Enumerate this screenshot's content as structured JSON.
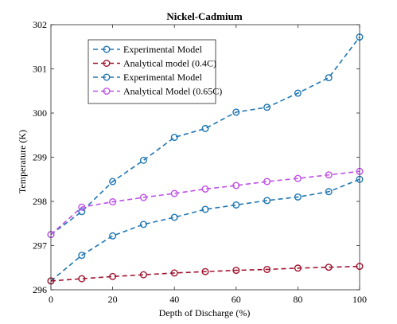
{
  "chart_data": {
    "type": "line",
    "title": "Nickel-Cadmium",
    "xlabel": "Depth of Discharge (%)",
    "ylabel": "Temperature (K)",
    "xlim": [
      0,
      100
    ],
    "ylim": [
      296,
      302
    ],
    "xticks": [
      0,
      20,
      40,
      60,
      80,
      100
    ],
    "yticks": [
      296,
      297,
      298,
      299,
      300,
      301,
      302
    ],
    "grid": false,
    "legend_position": "top-left",
    "series": [
      {
        "name": "Experimental Model",
        "color": "#1f77b4",
        "linestyle": "dashed",
        "marker": "circle",
        "x": [
          0,
          10,
          20,
          30,
          40,
          50,
          60,
          70,
          80,
          90,
          100
        ],
        "y": [
          296.2,
          296.78,
          297.22,
          297.48,
          297.64,
          297.82,
          297.92,
          298.02,
          298.1,
          298.22,
          298.5
        ]
      },
      {
        "name": "Analytical model (0.4C)",
        "color": "#a2142f",
        "linestyle": "dashed",
        "marker": "circle",
        "x": [
          0,
          10,
          20,
          30,
          40,
          50,
          60,
          70,
          80,
          90,
          100
        ],
        "y": [
          296.2,
          296.25,
          296.3,
          296.34,
          296.38,
          296.41,
          296.44,
          296.46,
          296.49,
          296.51,
          296.53
        ]
      },
      {
        "name": "Experimental Model",
        "color": "#1f77b4",
        "linestyle": "dashed",
        "marker": "circle",
        "x": [
          0,
          10,
          20,
          30,
          40,
          50,
          60,
          70,
          80,
          90,
          100
        ],
        "y": [
          297.25,
          297.77,
          298.45,
          298.93,
          299.45,
          299.65,
          300.02,
          300.13,
          300.45,
          300.8,
          301.72
        ]
      },
      {
        "name": "Analytical Model (0.65C)",
        "color": "#c050e8",
        "linestyle": "dashed",
        "marker": "circle",
        "x": [
          0,
          10,
          20,
          30,
          40,
          50,
          60,
          70,
          80,
          90,
          100
        ],
        "y": [
          297.25,
          297.87,
          297.99,
          298.09,
          298.18,
          298.28,
          298.36,
          298.45,
          298.52,
          298.6,
          298.68
        ]
      }
    ]
  }
}
